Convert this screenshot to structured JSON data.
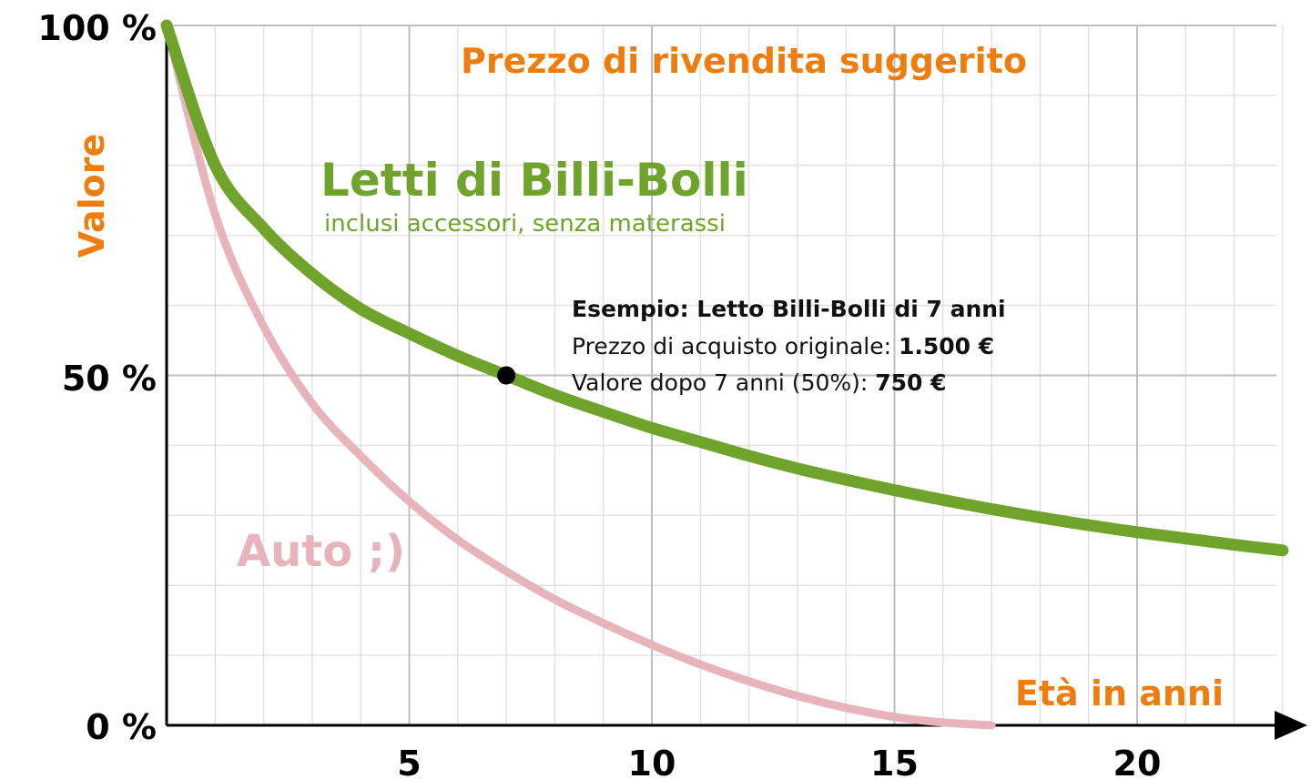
{
  "chart_data": {
    "type": "line",
    "title": "Prezzo di rivendita suggerito",
    "xlabel": "Età in anni",
    "ylabel": "Valore",
    "xlim": [
      0,
      23
    ],
    "ylim": [
      0,
      100
    ],
    "x_ticks": [
      "5",
      "10",
      "15",
      "20"
    ],
    "x_tick_values": [
      5,
      10,
      15,
      20
    ],
    "y_ticks": [
      "0 %",
      "50 %",
      "100 %"
    ],
    "y_tick_values": [
      0,
      50,
      100
    ],
    "grid": true,
    "series": [
      {
        "name": "Letti di Billi-Bolli",
        "subtitle": "inclusi accessori, senza materassi",
        "color": "#6fa32b",
        "x": [
          0,
          1,
          2,
          3,
          4,
          5,
          6,
          7,
          8,
          9,
          10,
          11,
          12,
          13,
          14,
          15,
          16,
          17,
          18,
          19,
          20,
          21,
          22,
          23
        ],
        "y": [
          100,
          80,
          71,
          64.5,
          59.5,
          56,
          52.8,
          50,
          47.2,
          44.8,
          42.5,
          40.5,
          38.5,
          36.7,
          35.1,
          33.6,
          32.2,
          30.9,
          29.7,
          28.6,
          27.6,
          26.7,
          25.8,
          25
        ]
      },
      {
        "name": "Auto ;)",
        "color": "#e8b4bb",
        "x": [
          0,
          1,
          2,
          3,
          4,
          5,
          6,
          7,
          8,
          9,
          10,
          11,
          12,
          13,
          14,
          15,
          16,
          17
        ],
        "y": [
          100,
          73,
          57,
          46,
          38.5,
          32,
          26.5,
          22,
          18,
          14.6,
          11.5,
          8.7,
          6.3,
          4.2,
          2.5,
          1.2,
          0.4,
          0
        ]
      }
    ],
    "annotation": {
      "x": 7,
      "y": 50,
      "heading": "Esempio: Letto Billi-Bolli di 7 anni",
      "line1_label": "Prezzo di acquisto originale: ",
      "line1_value": "1.500 €",
      "line2_label": "Valore dopo 7 anni (50%): ",
      "line2_value": "750 €"
    }
  },
  "colors": {
    "orange": "#ee7d0f",
    "green": "#6fa32b",
    "pink": "#e8b4bb",
    "grid_major": "#bfbfbf",
    "grid_minor": "#e2e2e2",
    "axis": "#000000"
  }
}
